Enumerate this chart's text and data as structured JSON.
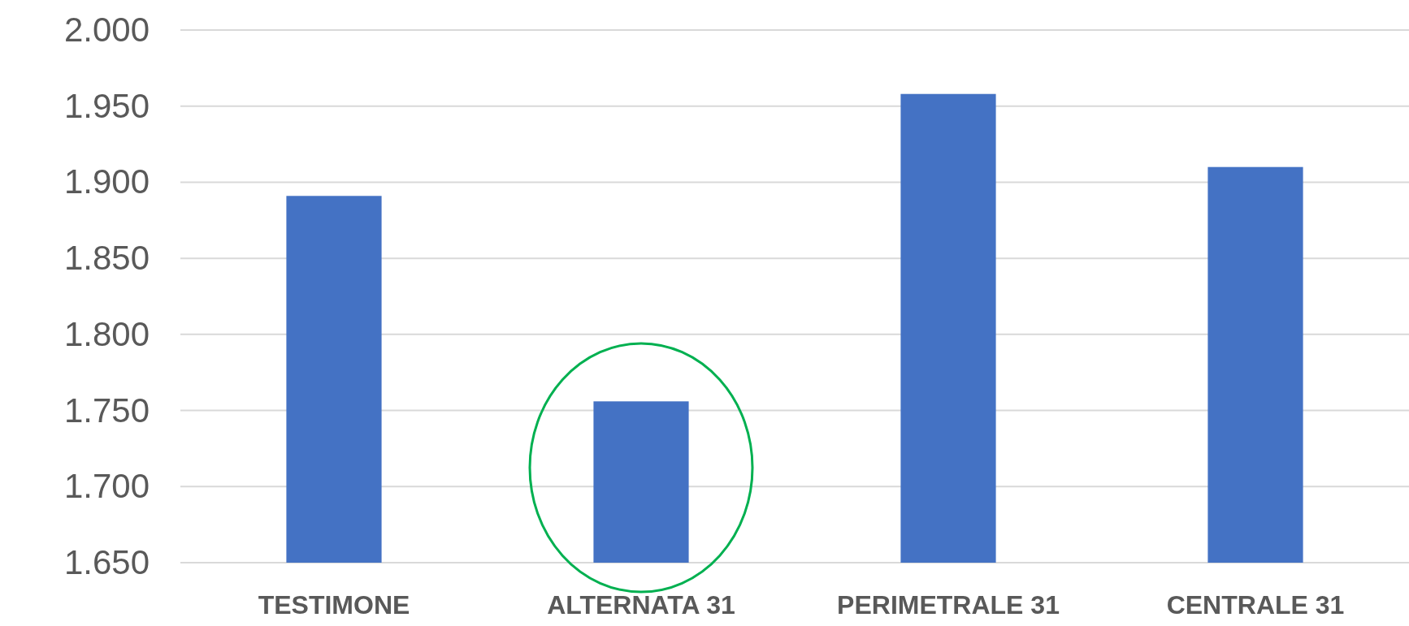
{
  "chart_data": {
    "type": "bar",
    "categories": [
      "TESTIMONE",
      "ALTERNATA 31",
      "PERIMETRALE 31",
      "CENTRALE 31"
    ],
    "values": [
      1891,
      1756,
      1958,
      1910
    ],
    "color": "#4472c4",
    "ylim": [
      1650,
      2000
    ],
    "yticks": [
      {
        "value": 1650,
        "label": "1.650"
      },
      {
        "value": 1700,
        "label": "1.700"
      },
      {
        "value": 1750,
        "label": "1.750"
      },
      {
        "value": 1800,
        "label": "1.800"
      },
      {
        "value": 1850,
        "label": "1.850"
      },
      {
        "value": 1900,
        "label": "1.900"
      },
      {
        "value": 1950,
        "label": "1.950"
      },
      {
        "value": 2000,
        "label": "2.000"
      }
    ],
    "grid": "y"
  }
}
